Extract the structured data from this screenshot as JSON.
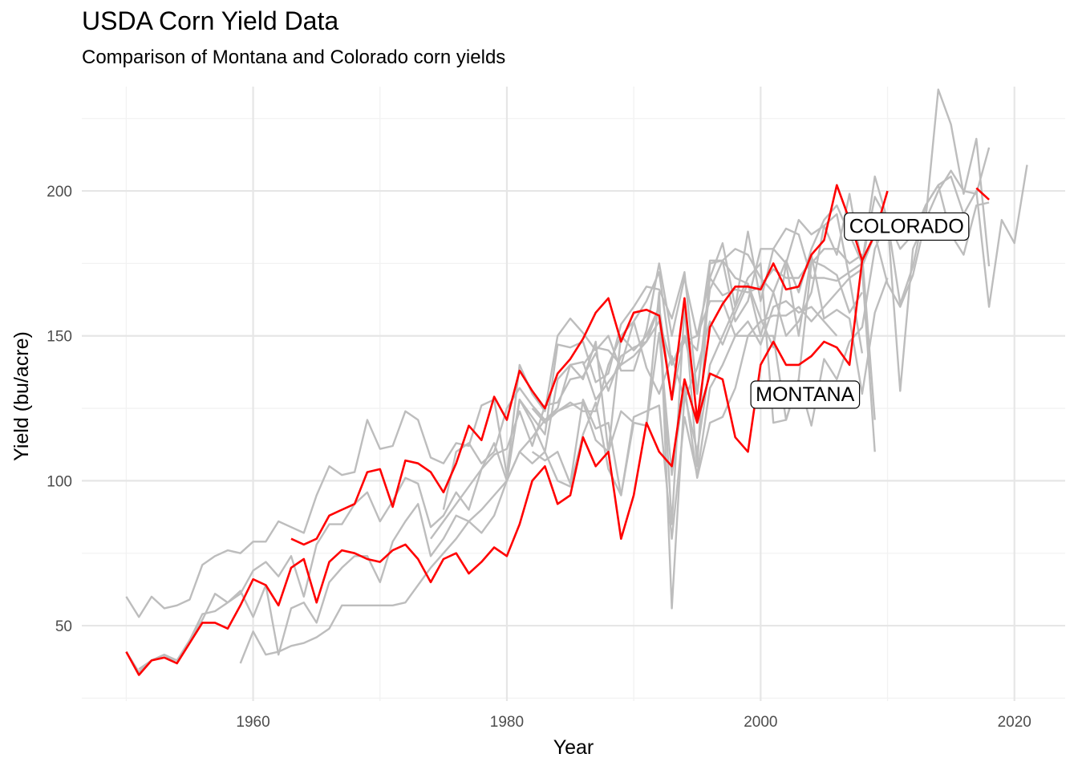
{
  "colors": {
    "highlight": "#ff0000",
    "background_series": "#bdbdbd",
    "grid_major": "#e6e6e6",
    "grid_minor": "#f2f2f2"
  },
  "chart_data": {
    "type": "line",
    "title": "USDA Corn Yield Data",
    "subtitle": "Comparison of Montana and Colorado corn yields",
    "xlabel": "Year",
    "ylabel": "Yield (bu/acre)",
    "xlim": [
      1946.5,
      2024
    ],
    "ylim": [
      24,
      236
    ],
    "x_ticks": [
      1960,
      1980,
      2000,
      2020
    ],
    "y_ticks": [
      50,
      100,
      150,
      200
    ],
    "grid": true,
    "highlighted_series": [
      {
        "name": "COLORADO",
        "label": "COLORADO",
        "color": "#ff0000",
        "x": [
          1950,
          1951,
          1952,
          1953,
          1954,
          1955,
          1956,
          1957,
          1958,
          1959,
          1960,
          1961,
          1962,
          1963,
          1964,
          1965,
          1966,
          1967,
          1968,
          1969,
          1970,
          1971,
          1972,
          1973,
          1974,
          1975,
          1976,
          1977,
          1978,
          1979,
          1980,
          1981,
          1982,
          1983,
          1984,
          1985,
          1986,
          1987,
          1988,
          1989,
          1990,
          1991,
          1992,
          1993,
          1994,
          1995,
          1996,
          1997,
          1998,
          1999,
          2000,
          2001,
          2002,
          2003,
          2004,
          2005,
          2006,
          2007,
          2008,
          2009,
          2010,
          2011,
          2012,
          2013,
          2014,
          2015,
          2016,
          2017,
          2018
        ],
        "y": [
          41,
          33,
          38,
          39,
          37,
          44,
          51,
          51,
          49,
          57,
          66,
          64,
          57,
          70,
          73,
          58,
          72,
          76,
          75,
          73,
          72,
          76,
          78,
          73,
          65,
          73,
          75,
          68,
          72,
          77,
          74,
          85,
          100,
          105,
          92,
          95,
          115,
          105,
          110,
          80,
          95,
          120,
          110,
          105,
          135,
          120,
          137,
          135,
          115,
          110,
          140,
          148,
          140,
          140,
          143,
          148,
          146,
          140,
          176,
          185,
          200,
          null,
          null,
          null,
          null,
          null,
          null,
          201,
          197
        ]
      },
      {
        "name": "MONTANA",
        "label": "MONTANA",
        "color": "#ff0000",
        "x": [
          1963,
          1964,
          1965,
          1966,
          1967,
          1968,
          1969,
          1970,
          1971,
          1972,
          1973,
          1974,
          1975,
          1976,
          1977,
          1978,
          1979,
          1980,
          1981,
          1982,
          1983,
          1984,
          1985,
          1986,
          1987,
          1988,
          1989,
          1990,
          1991,
          1992,
          1993,
          1994,
          1995,
          1996,
          1997,
          1998,
          1999,
          2000,
          2001,
          2002,
          2003,
          2004,
          2005,
          2006,
          2007,
          2008
        ],
        "y": [
          80,
          78,
          80,
          88,
          90,
          92,
          103,
          104,
          91,
          107,
          106,
          103,
          96,
          106,
          119,
          114,
          129,
          121,
          138,
          131,
          125,
          137,
          142,
          149,
          158,
          163,
          148,
          158,
          159,
          157,
          128,
          163,
          121,
          153,
          161,
          167,
          167,
          166,
          175,
          166,
          167,
          178,
          183,
          202,
          190,
          176
        ]
      }
    ],
    "background_series_count": 10,
    "background_series": [
      {
        "x": [
          1950,
          1951,
          1952,
          1953,
          1954,
          1955,
          1956,
          1957,
          1958,
          1959,
          1960,
          1961,
          1962,
          1963,
          1964,
          1965,
          1966,
          1967,
          1968,
          1969,
          1970,
          1971,
          1972,
          1973,
          1974,
          1975,
          1976,
          1977,
          1978,
          1979,
          1980,
          1981,
          1982,
          1983,
          1984,
          1985,
          1986,
          1987,
          1988,
          1989,
          1990,
          1991,
          1992,
          1993,
          1994,
          1995,
          1996,
          1997,
          1998,
          1999,
          2000,
          2001,
          2002,
          2003,
          2004,
          2005,
          2006,
          2007,
          2008,
          2009,
          2010,
          2011,
          2012,
          2013,
          2014,
          2015,
          2016,
          2017,
          2018
        ],
        "y": [
          60,
          53,
          60,
          56,
          57,
          59,
          71,
          74,
          76,
          75,
          79,
          79,
          86,
          84,
          82,
          95,
          105,
          102,
          103,
          121,
          111,
          112,
          124,
          121,
          108,
          106,
          113,
          112,
          126,
          128,
          102,
          140,
          130,
          124,
          150,
          156,
          151,
          145,
          150,
          138,
          138,
          152,
          175,
          150,
          170,
          150,
          170,
          182,
          160,
          186,
          162,
          180,
          175,
          190,
          185,
          188,
          178,
          199,
          174,
          185,
          168,
          160,
          171,
          190,
          200,
          207,
          200,
          199,
          215
        ]
      },
      {
        "x": [
          1950,
          1951,
          1952,
          1953,
          1954,
          1955,
          1956,
          1957,
          1958,
          1959,
          1960,
          1961,
          1962,
          1963,
          1964,
          1965,
          1966,
          1967,
          1968,
          1969,
          1970,
          1971,
          1972,
          1973,
          1974,
          1975,
          1976,
          1977,
          1978,
          1979,
          1980,
          1981,
          1982,
          1983,
          1984,
          1985,
          1986,
          1987,
          1988,
          1989,
          1990,
          1991,
          1992,
          1993,
          1994,
          1995,
          1996,
          1997,
          1998,
          1999,
          2000,
          2001,
          2002,
          2003,
          2004,
          2005,
          2006,
          2007,
          2008
        ],
        "y": [
          41,
          34,
          38,
          40,
          38,
          45,
          54,
          55,
          58,
          61,
          69,
          72,
          67,
          74,
          60,
          78,
          85,
          85,
          92,
          96,
          86,
          93,
          101,
          99,
          84,
          88,
          96,
          90,
          104,
          113,
          100,
          128,
          122,
          116,
          147,
          146,
          148,
          134,
          137,
          154,
          160,
          167,
          166,
          156,
          172,
          130,
          166,
          176,
          170,
          168,
          150,
          165,
          150,
          155,
          165,
          188,
          192,
          170,
          144
        ]
      },
      {
        "x": [
          1951,
          1952,
          1953,
          1954,
          1955,
          1956,
          1957,
          1958,
          1959,
          1960,
          1961,
          1962,
          1963,
          1964,
          1965,
          1966,
          1967,
          1968,
          1969,
          1970,
          1971,
          1972,
          1973,
          1974,
          1975,
          1976,
          1977,
          1978,
          1979,
          1980,
          1981,
          1982,
          1983,
          1984,
          1985,
          1986,
          1987,
          1988,
          1989,
          1990,
          1991,
          1992,
          1993,
          1994,
          1995,
          1996,
          1997,
          1998,
          1999,
          2000,
          2001,
          2002,
          2003,
          2004,
          2005,
          2006,
          2007,
          2008,
          2009
        ],
        "y": [
          35,
          38,
          40,
          37,
          45,
          52,
          61,
          58,
          62,
          53,
          64,
          40,
          56,
          58,
          51,
          65,
          70,
          74,
          74,
          65,
          79,
          86,
          92,
          74,
          80,
          88,
          86,
          82,
          88,
          100,
          110,
          106,
          110,
          100,
          98,
          116,
          127,
          104,
          95,
          122,
          124,
          126,
          80,
          122,
          102,
          132,
          140,
          150,
          150,
          155,
          157,
          157,
          160,
          155,
          160,
          165,
          170,
          173,
          110
        ]
      },
      {
        "x": [
          1959,
          1960,
          1961,
          1962,
          1963,
          1964,
          1965,
          1966,
          1967,
          1968,
          1969,
          1970,
          1971,
          1972,
          1973,
          1974,
          1975,
          1976,
          1977,
          1978,
          1979,
          1980,
          1981,
          1982,
          1983,
          1984,
          1985,
          1986,
          1987,
          1988,
          1989,
          1990,
          1991,
          1992,
          1993,
          1994,
          1995,
          1996,
          1997,
          1998,
          1999,
          2000,
          2001,
          2002,
          2003,
          2004,
          2005,
          2006,
          2007,
          2008,
          2009
        ],
        "y": [
          37,
          48,
          40,
          41,
          43,
          44,
          46,
          49,
          57,
          57,
          57,
          57,
          57,
          58,
          64,
          70,
          75,
          80,
          86,
          90,
          95,
          100,
          110,
          115,
          121,
          124,
          126,
          127,
          114,
          110,
          124,
          120,
          119,
          165,
          56,
          130,
          110,
          140,
          150,
          160,
          170,
          175,
          120,
          121,
          135,
          175,
          180,
          180,
          175,
          178,
          121
        ]
      },
      {
        "x": [
          1980,
          1981,
          1982,
          1983,
          1984,
          1985,
          1986,
          1987,
          1988,
          1989,
          1990,
          1991,
          1992,
          1993,
          1994,
          1995,
          1996,
          1997,
          1998,
          1999,
          2000,
          2001,
          2002,
          2003,
          2004,
          2005,
          2006,
          2007,
          2008,
          2009,
          2010,
          2011,
          2012,
          2013,
          2014,
          2015,
          2016,
          2017,
          2018,
          2019,
          2020,
          2021
        ],
        "y": [
          101,
          128,
          120,
          110,
          135,
          140,
          135,
          148,
          110,
          150,
          145,
          150,
          160,
          85,
          160,
          105,
          175,
          176,
          180,
          178,
          170,
          165,
          176,
          165,
          180,
          190,
          195,
          185,
          175,
          205,
          190,
          180,
          185,
          195,
          202,
          205,
          192,
          200,
          160,
          190,
          182,
          209
        ]
      },
      {
        "x": [
          1982,
          1983,
          1984,
          1985,
          1986,
          1987,
          1988,
          1989,
          1990,
          1991,
          1992,
          1993,
          1994,
          1995,
          1996,
          1997,
          1998,
          1999,
          2000,
          2001,
          2002,
          2003,
          2004,
          2005,
          2006,
          2007,
          2008,
          2009,
          2010,
          2011,
          2012,
          2013,
          2014,
          2015,
          2016,
          2017,
          2018
        ],
        "y": [
          110,
          107,
          110,
          99,
          128,
          118,
          120,
          95,
          120,
          119,
          151,
          102,
          133,
          101,
          120,
          122,
          132,
          150,
          150,
          150,
          121,
          135,
          119,
          142,
          135,
          148,
          153,
          180,
          190,
          131,
          180,
          190,
          235,
          223,
          199,
          218,
          174
        ]
      },
      {
        "x": [
          1986,
          1987,
          1988,
          1989,
          1990,
          1991,
          1992,
          1993,
          1994,
          1995,
          1996,
          1997,
          1998,
          1999,
          2000,
          2001,
          2002,
          2003,
          2004,
          2005,
          2006,
          2007,
          2008,
          2009,
          2010,
          2011,
          2012,
          2013,
          2014,
          2015,
          2016,
          2017,
          2018
        ],
        "y": [
          140,
          146,
          145,
          140,
          155,
          162,
          172,
          140,
          150,
          145,
          176,
          176,
          155,
          162,
          180,
          180,
          187,
          185,
          170,
          170,
          169,
          172,
          175,
          198,
          190,
          161,
          174,
          195,
          202,
          185,
          178,
          195,
          196
        ]
      },
      {
        "x": [
          1982,
          1983,
          1984,
          1985,
          1986,
          1987,
          1988,
          1989,
          1990,
          1991,
          1992,
          1993,
          1994,
          1995,
          1996,
          1997,
          1998,
          1999,
          2000,
          2001,
          2002,
          2003,
          2004,
          2005,
          2006,
          2007,
          2008,
          2009,
          2010
        ],
        "y": [
          125,
          120,
          124,
          127,
          124,
          124,
          140,
          150,
          155,
          139,
          130,
          143,
          128,
          139,
          155,
          147,
          158,
          168,
          156,
          146,
          175,
          150,
          178,
          156,
          159,
          156,
          130,
          158,
          170
        ]
      },
      {
        "x": [
          1975,
          1976,
          1977,
          1978,
          1979,
          1980,
          1981,
          1982,
          1983,
          1984,
          1985,
          1986,
          1987,
          1988,
          1989,
          1990,
          1991,
          1992,
          1993,
          1994,
          1995,
          1996,
          1997,
          1998,
          1999,
          2000,
          2001,
          2002,
          2003,
          2004,
          2005,
          2006,
          2007,
          2008
        ],
        "y": [
          90,
          110,
          113,
          106,
          110,
          125,
          132,
          126,
          121,
          125,
          140,
          141,
          128,
          134,
          140,
          143,
          148,
          160,
          128,
          150,
          130,
          170,
          164,
          166,
          165,
          167,
          173,
          170,
          170,
          176,
          174,
          171,
          158,
          165
        ]
      },
      {
        "x": [
          1974,
          1975,
          1976,
          1977,
          1978,
          1979,
          1980,
          1981,
          1982,
          1983,
          1984,
          1985,
          1986,
          1987,
          1988,
          1989,
          1990,
          1991,
          1992,
          1993,
          1994,
          1995,
          1996,
          1997,
          1998,
          1999,
          2000,
          2001,
          2002,
          2003,
          2004,
          2005,
          2006
        ],
        "y": [
          80,
          86,
          92,
          98,
          104,
          109,
          111,
          124,
          112,
          126,
          127,
          135,
          136,
          144,
          131,
          143,
          146,
          148,
          155,
          140,
          148,
          150,
          162,
          162,
          150,
          155,
          147,
          160,
          162,
          158,
          160,
          155,
          150
        ]
      }
    ]
  }
}
